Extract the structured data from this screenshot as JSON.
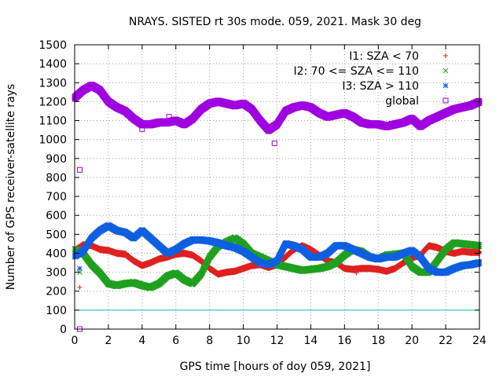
{
  "chart_data": {
    "type": "scatter",
    "title": "NRAYS. SISTED rt 30s mode. 059, 2021. Mask 30 deg",
    "xlabel": "GPS time [hours of doy 059, 2021]",
    "ylabel": "Number of GPS receiver-satellite rays",
    "xlim": [
      0,
      24
    ],
    "ylim": [
      0,
      1500
    ],
    "xticks": [
      "0",
      "2",
      "4",
      "6",
      "8",
      "10",
      "12",
      "14",
      "16",
      "18",
      "20",
      "22",
      "24"
    ],
    "yticks": [
      "0",
      "100",
      "200",
      "300",
      "400",
      "500",
      "600",
      "700",
      "800",
      "900",
      "1000",
      "1100",
      "1200",
      "1300",
      "1400",
      "1500"
    ],
    "grid": true,
    "legend_position": "top-right",
    "reference_line": {
      "y": 100,
      "color": "#00c0c0"
    },
    "series": [
      {
        "name": "I1: SZA < 70",
        "marker": "+",
        "color": "#e02020",
        "x": [
          0,
          0.5,
          1,
          1.5,
          2,
          2.5,
          3,
          3.5,
          4,
          4.5,
          5,
          5.5,
          6,
          6.5,
          7,
          7.5,
          8,
          8.5,
          9,
          9.5,
          10,
          10.5,
          11,
          11.5,
          12,
          12.5,
          13,
          13.5,
          14,
          14.5,
          15,
          15.5,
          16,
          16.5,
          17,
          17.5,
          18,
          18.5,
          19,
          19.5,
          20,
          20.5,
          21,
          21.5,
          22,
          22.5,
          23,
          23.5,
          24
        ],
        "y": [
          415,
          445,
          440,
          420,
          415,
          400,
          395,
          360,
          335,
          350,
          370,
          380,
          395,
          400,
          390,
          360,
          320,
          290,
          300,
          305,
          320,
          335,
          340,
          325,
          340,
          380,
          420,
          440,
          420,
          390,
          360,
          350,
          320,
          315,
          320,
          320,
          315,
          305,
          320,
          350,
          375,
          390,
          440,
          430,
          410,
          400,
          410,
          405,
          405
        ],
        "outliers": [
          {
            "x": 0.3,
            "y": 220
          },
          {
            "x": 16.7,
            "y": 295
          }
        ]
      },
      {
        "name": "I2: 70 <= SZA <= 110",
        "marker": "x",
        "color": "#20a020",
        "x": [
          0,
          0.5,
          1,
          1.5,
          2,
          2.5,
          3,
          3.5,
          4,
          4.5,
          5,
          5.5,
          6,
          6.5,
          7,
          7.5,
          8,
          8.5,
          9,
          9.5,
          10,
          10.5,
          11,
          11.5,
          12,
          12.5,
          13,
          13.5,
          14,
          14.5,
          15,
          15.5,
          16,
          16.5,
          17,
          17.5,
          18,
          18.5,
          19,
          19.5,
          20,
          20.5,
          21,
          21.5,
          22,
          22.5,
          23,
          23.5,
          24
        ],
        "y": [
          420,
          400,
          340,
          295,
          240,
          230,
          240,
          245,
          230,
          220,
          240,
          280,
          295,
          260,
          240,
          290,
          380,
          435,
          460,
          480,
          450,
          400,
          380,
          360,
          340,
          330,
          320,
          310,
          315,
          320,
          330,
          350,
          390,
          420,
          410,
          380,
          370,
          390,
          395,
          400,
          330,
          300,
          300,
          360,
          420,
          455,
          450,
          445,
          440
        ],
        "outliers": [
          {
            "x": 0.3,
            "y": 300
          }
        ]
      },
      {
        "name": "I3: SZA > 110",
        "marker": "*",
        "color": "#1060e0",
        "x": [
          0,
          0.5,
          1,
          1.5,
          2,
          2.5,
          3,
          3.5,
          4,
          4.5,
          5,
          5.5,
          6,
          6.5,
          7,
          7.5,
          8,
          8.5,
          9,
          9.5,
          10,
          10.5,
          11,
          11.5,
          12,
          12.5,
          13,
          13.5,
          14,
          14.5,
          15,
          15.5,
          16,
          16.5,
          17,
          17.5,
          18,
          18.5,
          19,
          19.5,
          20,
          20.5,
          21,
          21.5,
          22,
          22.5,
          23,
          23.5,
          24
        ],
        "y": [
          385,
          410,
          480,
          520,
          545,
          520,
          510,
          480,
          520,
          480,
          440,
          400,
          420,
          450,
          470,
          470,
          465,
          455,
          440,
          430,
          410,
          380,
          350,
          340,
          360,
          450,
          440,
          420,
          380,
          380,
          400,
          440,
          440,
          420,
          400,
          380,
          370,
          380,
          380,
          400,
          415,
          380,
          320,
          300,
          300,
          320,
          335,
          340,
          350
        ],
        "outliers": [
          {
            "x": 0.3,
            "y": 320
          }
        ]
      },
      {
        "name": "global",
        "marker": "square",
        "color": "#a000e0",
        "x": [
          0,
          0.5,
          1,
          1.5,
          2,
          2.5,
          3,
          3.5,
          4,
          4.5,
          5,
          5.5,
          6,
          6.5,
          7,
          7.5,
          8,
          8.5,
          9,
          9.5,
          10,
          10.5,
          11,
          11.5,
          12,
          12.5,
          13,
          13.5,
          14,
          14.5,
          15,
          15.5,
          16,
          16.5,
          17,
          17.5,
          18,
          18.5,
          19,
          19.5,
          20,
          20.5,
          21,
          21.5,
          22,
          22.5,
          23,
          23.5,
          24
        ],
        "y": [
          1220,
          1260,
          1285,
          1260,
          1200,
          1170,
          1150,
          1110,
          1080,
          1080,
          1090,
          1090,
          1100,
          1080,
          1110,
          1160,
          1190,
          1200,
          1190,
          1180,
          1190,
          1160,
          1100,
          1050,
          1080,
          1150,
          1170,
          1180,
          1170,
          1140,
          1120,
          1130,
          1140,
          1120,
          1090,
          1080,
          1080,
          1070,
          1080,
          1090,
          1110,
          1070,
          1100,
          1120,
          1140,
          1160,
          1170,
          1180,
          1200
        ],
        "outliers": [
          {
            "x": 0.3,
            "y": 840
          },
          {
            "x": 0.3,
            "y": 0
          },
          {
            "x": 11.85,
            "y": 980
          },
          {
            "x": 4.0,
            "y": 1055
          },
          {
            "x": 5.6,
            "y": 1120
          }
        ]
      }
    ]
  }
}
